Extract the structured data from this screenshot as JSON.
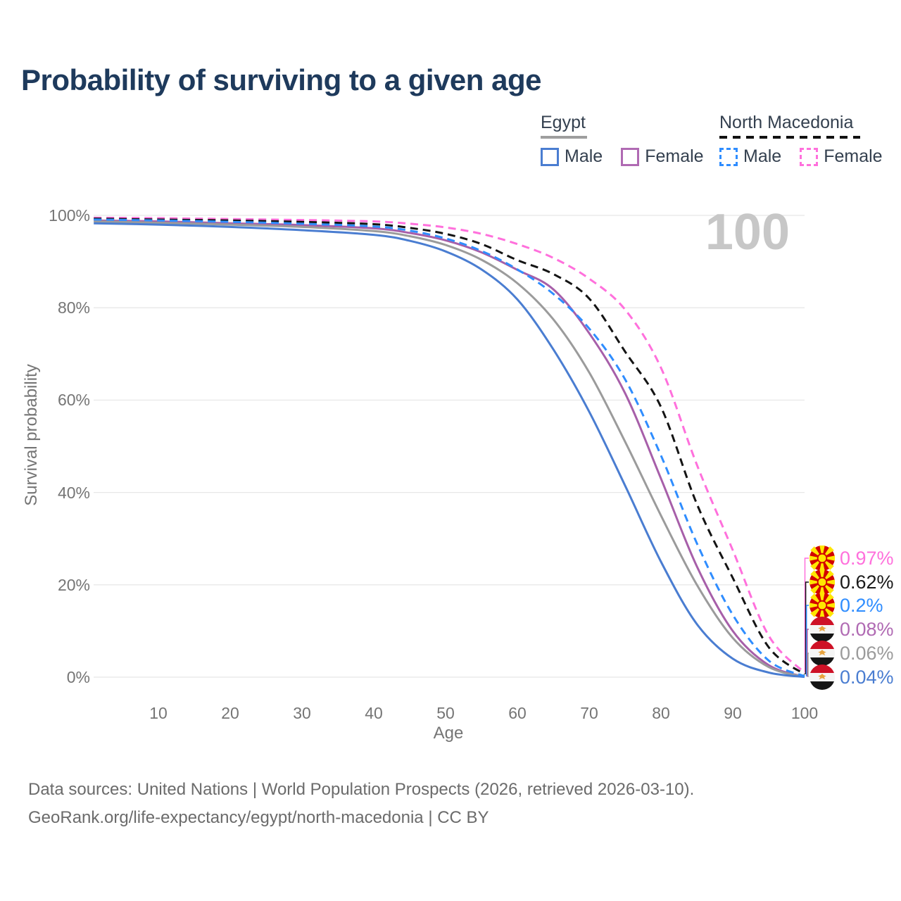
{
  "title": "Probability of surviving to a given age",
  "legend": {
    "groups": [
      {
        "label": "Egypt",
        "underline": "solid-gray",
        "items": [
          {
            "label": "Male",
            "color": "#4a7dd1",
            "dashed": false
          },
          {
            "label": "Female",
            "color": "#b06ab3",
            "dashed": false
          }
        ]
      },
      {
        "label": "North Macedonia",
        "underline": "dashed-black",
        "items": [
          {
            "label": "Male",
            "color": "#2f8dff",
            "dashed": true
          },
          {
            "label": "Female",
            "color": "#ff70dc",
            "dashed": true
          }
        ]
      }
    ]
  },
  "chart_data": {
    "type": "line",
    "title": "Probability of surviving to a given age",
    "xlabel": "Age",
    "ylabel": "Survival probability",
    "xlim": [
      0,
      100
    ],
    "ylim": [
      0,
      100
    ],
    "grid": "horizontal",
    "legend_position": "top-right",
    "annotation": "100",
    "x_ticks": [
      10,
      20,
      30,
      40,
      50,
      60,
      70,
      80,
      90,
      100
    ],
    "y_tick_labels": [
      "100%",
      "80%",
      "60%",
      "40%",
      "20%",
      "0%"
    ],
    "y_tick_values": [
      100,
      80,
      60,
      40,
      20,
      0
    ],
    "series": [
      {
        "name": "North Macedonia Female",
        "country": "North Macedonia",
        "sex": "Female",
        "color": "#ff70dc",
        "dashed": true,
        "end_label": "0.97%",
        "points": [
          [
            1,
            99.5
          ],
          [
            10,
            99.4
          ],
          [
            20,
            99.2
          ],
          [
            30,
            99.0
          ],
          [
            40,
            98.7
          ],
          [
            45,
            98.2
          ],
          [
            50,
            97.4
          ],
          [
            55,
            96.0
          ],
          [
            60,
            93.8
          ],
          [
            65,
            90.8
          ],
          [
            70,
            86.3
          ],
          [
            75,
            79.6
          ],
          [
            80,
            67.0
          ],
          [
            85,
            46.0
          ],
          [
            90,
            27.5
          ],
          [
            95,
            9.0
          ],
          [
            100,
            0.97
          ]
        ]
      },
      {
        "name": "North Macedonia Both sexes",
        "country": "North Macedonia",
        "sex": "Both",
        "color": "#141414",
        "dashed": true,
        "end_label": "0.62%",
        "points": [
          [
            1,
            99.3
          ],
          [
            10,
            99.1
          ],
          [
            20,
            98.9
          ],
          [
            30,
            98.6
          ],
          [
            40,
            98.1
          ],
          [
            45,
            97.3
          ],
          [
            50,
            96.0
          ],
          [
            55,
            93.8
          ],
          [
            60,
            90.3
          ],
          [
            65,
            87.3
          ],
          [
            70,
            82.0
          ],
          [
            75,
            70.5
          ],
          [
            80,
            58.5
          ],
          [
            85,
            37.5
          ],
          [
            90,
            21.5
          ],
          [
            95,
            6.5
          ],
          [
            100,
            0.62
          ]
        ]
      },
      {
        "name": "North Macedonia Male",
        "country": "North Macedonia",
        "sex": "Male",
        "color": "#2f8dff",
        "dashed": true,
        "end_label": "0.2%",
        "points": [
          [
            1,
            99.1
          ],
          [
            10,
            98.9
          ],
          [
            20,
            98.6
          ],
          [
            30,
            98.2
          ],
          [
            40,
            97.6
          ],
          [
            45,
            96.7
          ],
          [
            50,
            95.0
          ],
          [
            55,
            92.3
          ],
          [
            60,
            88.3
          ],
          [
            65,
            83.0
          ],
          [
            70,
            75.5
          ],
          [
            75,
            64.5
          ],
          [
            80,
            48.0
          ],
          [
            85,
            29.0
          ],
          [
            90,
            13.5
          ],
          [
            95,
            3.6
          ],
          [
            100,
            0.2
          ]
        ]
      },
      {
        "name": "Egypt Female",
        "country": "Egypt",
        "sex": "Female",
        "color": "#a75fa9",
        "dashed": false,
        "end_label": "0.08%",
        "points": [
          [
            1,
            98.9
          ],
          [
            10,
            98.7
          ],
          [
            20,
            98.3
          ],
          [
            30,
            97.9
          ],
          [
            40,
            97.2
          ],
          [
            45,
            96.2
          ],
          [
            50,
            94.6
          ],
          [
            55,
            92.0
          ],
          [
            60,
            88.2
          ],
          [
            65,
            84.0
          ],
          [
            70,
            74.5
          ],
          [
            75,
            61.5
          ],
          [
            80,
            43.0
          ],
          [
            85,
            24.0
          ],
          [
            90,
            10.0
          ],
          [
            95,
            2.6
          ],
          [
            100,
            0.08
          ]
        ]
      },
      {
        "name": "Egypt Both sexes",
        "country": "Egypt",
        "sex": "Both",
        "color": "#9b9b9b",
        "dashed": false,
        "end_label": "0.06%",
        "points": [
          [
            1,
            98.7
          ],
          [
            10,
            98.4
          ],
          [
            20,
            98.0
          ],
          [
            30,
            97.5
          ],
          [
            40,
            96.6
          ],
          [
            45,
            95.5
          ],
          [
            50,
            93.6
          ],
          [
            55,
            90.4
          ],
          [
            60,
            85.3
          ],
          [
            65,
            77.5
          ],
          [
            70,
            66.0
          ],
          [
            75,
            51.0
          ],
          [
            80,
            35.0
          ],
          [
            85,
            20.0
          ],
          [
            90,
            8.5
          ],
          [
            95,
            2.2
          ],
          [
            100,
            0.06
          ]
        ]
      },
      {
        "name": "Egypt Male",
        "country": "Egypt",
        "sex": "Male",
        "color": "#4a7dd1",
        "dashed": false,
        "end_label": "0.04%",
        "points": [
          [
            1,
            98.3
          ],
          [
            10,
            98.0
          ],
          [
            20,
            97.5
          ],
          [
            30,
            96.8
          ],
          [
            40,
            95.8
          ],
          [
            45,
            94.5
          ],
          [
            50,
            92.2
          ],
          [
            55,
            88.3
          ],
          [
            60,
            81.8
          ],
          [
            65,
            71.0
          ],
          [
            70,
            57.5
          ],
          [
            75,
            41.5
          ],
          [
            80,
            25.0
          ],
          [
            85,
            11.5
          ],
          [
            90,
            4.0
          ],
          [
            95,
            1.0
          ],
          [
            100,
            0.04
          ]
        ]
      }
    ]
  },
  "end_labels": [
    {
      "flag": "north-macedonia",
      "value": "0.97%",
      "color": "#ff70dc"
    },
    {
      "flag": "north-macedonia",
      "value": "0.62%",
      "color": "#1a1a1a"
    },
    {
      "flag": "north-macedonia",
      "value": "0.2%",
      "color": "#2f8dff"
    },
    {
      "flag": "egypt",
      "value": "0.08%",
      "color": "#b06ab3"
    },
    {
      "flag": "egypt",
      "value": "0.06%",
      "color": "#9b9b9b"
    },
    {
      "flag": "egypt",
      "value": "0.04%",
      "color": "#4a7dd1"
    }
  ],
  "footer": {
    "line1": "Data sources: United Nations | World Population Prospects (2026, retrieved 2026-03-10).",
    "line2": "GeoRank.org/life-expectancy/egypt/north-macedonia | CC BY"
  }
}
